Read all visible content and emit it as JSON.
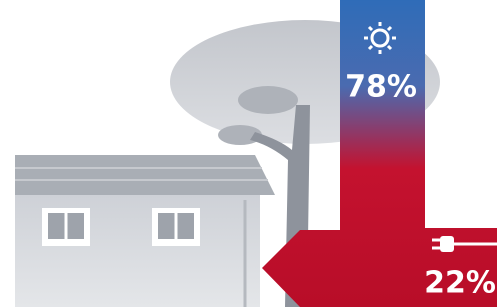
{
  "solar": {
    "label": "78%"
  },
  "grid": {
    "label": "22%"
  }
}
